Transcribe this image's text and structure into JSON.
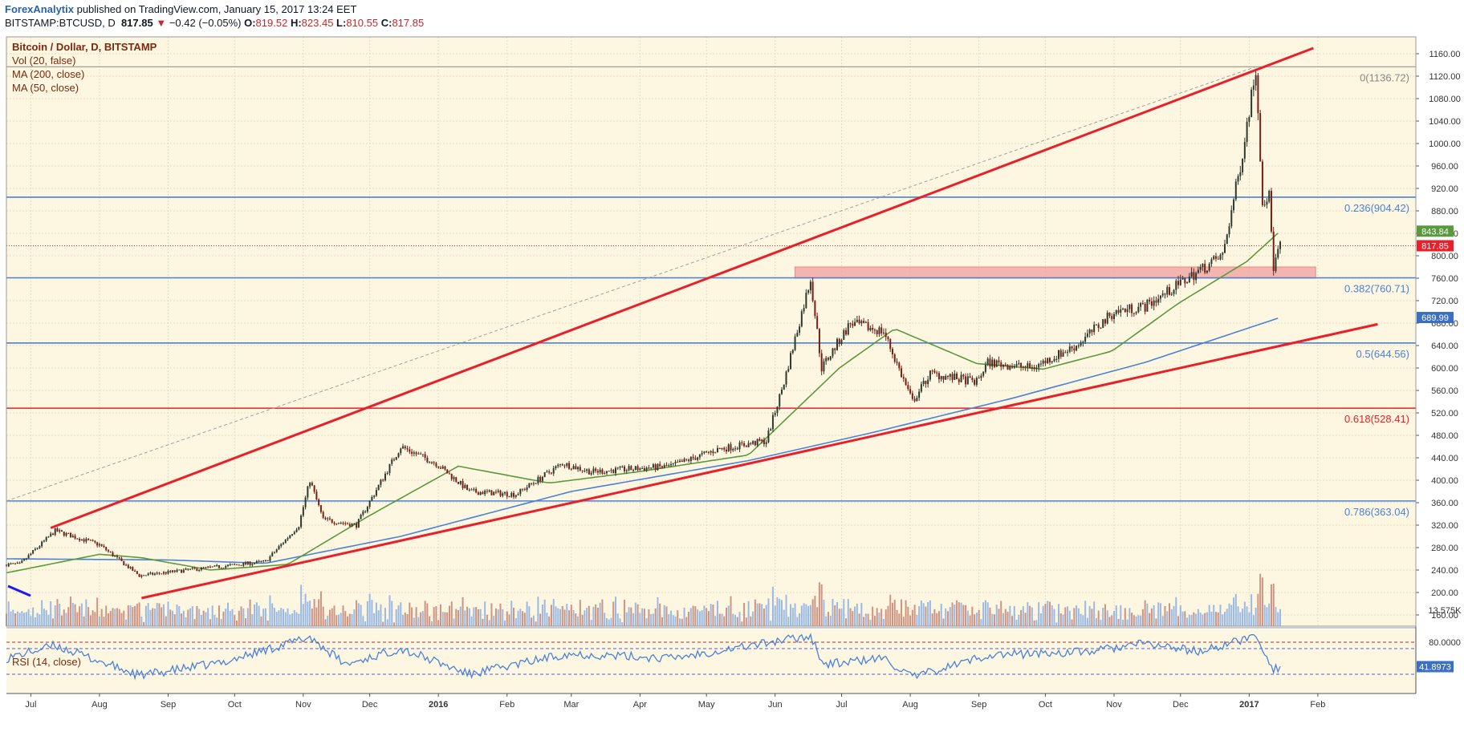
{
  "header": {
    "brand": "ForexAnalytix",
    "published": " published on TradingView.com, January 15, 2017 13:24 EET",
    "symbol": "BITSTAMP:BTCUSD, D",
    "last": "817.85",
    "arrow": "▼",
    "change": "−0.42 (−0.05%)",
    "open_label": "O:",
    "open": "819.52",
    "high_label": "H:",
    "high": "823.45",
    "low_label": "L:",
    "low": "810.55",
    "close_label": "C:",
    "close": "817.85"
  },
  "legend": {
    "title": "Bitcoin / Dollar, D, BITSTAMP",
    "vol": "Vol (20, false)",
    "ma200": "MA (200, close)",
    "ma50": "MA (50, close)",
    "rsi": "RSI (14, close)"
  },
  "colors": {
    "background": "#fdf6e1",
    "up": "#2d3a2d",
    "down": "#7a1e14",
    "ma50": "#5a9a3c",
    "ma200": "#4a82d8",
    "trend": "#e8202a",
    "fib_blue": "#4a82d8",
    "fib_red": "#e8202a",
    "zone": "#f2a0a0",
    "rsi": "#4a82d8"
  },
  "chart_data": {
    "type": "candlestick",
    "title": "Bitcoin / Dollar, D, BITSTAMP",
    "xlabel": "",
    "ylabel": "",
    "ylim": [
      140,
      1190
    ],
    "x_tick_labels": [
      "Jul",
      "Aug",
      "Sep",
      "Oct",
      "Nov",
      "Dec",
      "2016",
      "Feb",
      "Mar",
      "Apr",
      "May",
      "Jun",
      "Jul",
      "Aug",
      "Sep",
      "Oct",
      "Nov",
      "Dec",
      "2017",
      "Feb"
    ],
    "y_ticks": [
      160,
      200,
      240,
      280,
      320,
      360,
      400,
      440,
      480,
      520,
      560,
      600,
      640,
      680,
      720,
      760,
      800,
      840,
      880,
      920,
      960,
      1000,
      1040,
      1080,
      1120,
      1160
    ],
    "price_anchors": [
      {
        "date": "2015-06-26",
        "price": 250
      },
      {
        "date": "2015-07-12",
        "price": 310
      },
      {
        "date": "2015-08-01",
        "price": 285
      },
      {
        "date": "2015-08-19",
        "price": 230
      },
      {
        "date": "2015-09-10",
        "price": 240
      },
      {
        "date": "2015-10-15",
        "price": 255
      },
      {
        "date": "2015-10-30",
        "price": 320
      },
      {
        "date": "2015-11-04",
        "price": 400
      },
      {
        "date": "2015-11-10",
        "price": 330
      },
      {
        "date": "2015-11-25",
        "price": 320
      },
      {
        "date": "2015-12-15",
        "price": 460
      },
      {
        "date": "2015-12-31",
        "price": 430
      },
      {
        "date": "2016-01-15",
        "price": 380
      },
      {
        "date": "2016-02-05",
        "price": 375
      },
      {
        "date": "2016-02-26",
        "price": 430
      },
      {
        "date": "2016-03-10",
        "price": 415
      },
      {
        "date": "2016-04-15",
        "price": 425
      },
      {
        "date": "2016-05-06",
        "price": 455
      },
      {
        "date": "2016-05-28",
        "price": 470
      },
      {
        "date": "2016-06-05",
        "price": 575
      },
      {
        "date": "2016-06-17",
        "price": 760
      },
      {
        "date": "2016-06-22",
        "price": 600
      },
      {
        "date": "2016-07-05",
        "price": 680
      },
      {
        "date": "2016-07-20",
        "price": 665
      },
      {
        "date": "2016-08-02",
        "price": 540
      },
      {
        "date": "2016-08-10",
        "price": 590
      },
      {
        "date": "2016-08-31",
        "price": 575
      },
      {
        "date": "2016-09-05",
        "price": 610
      },
      {
        "date": "2016-09-25",
        "price": 600
      },
      {
        "date": "2016-10-15",
        "price": 640
      },
      {
        "date": "2016-11-01",
        "price": 700
      },
      {
        "date": "2016-11-15",
        "price": 710
      },
      {
        "date": "2016-11-25",
        "price": 735
      },
      {
        "date": "2016-12-10",
        "price": 775
      },
      {
        "date": "2016-12-20",
        "price": 800
      },
      {
        "date": "2016-12-28",
        "price": 960
      },
      {
        "date": "2017-01-04",
        "price": 1136
      },
      {
        "date": "2017-01-07",
        "price": 900
      },
      {
        "date": "2017-01-10",
        "price": 905
      },
      {
        "date": "2017-01-12",
        "price": 780
      },
      {
        "date": "2017-01-15",
        "price": 818
      }
    ],
    "ma50_anchors": [
      {
        "date": "2015-06-20",
        "value": 235
      },
      {
        "date": "2015-08-01",
        "value": 268
      },
      {
        "date": "2015-08-20",
        "value": 262
      },
      {
        "date": "2015-09-20",
        "value": 240
      },
      {
        "date": "2015-10-25",
        "value": 250
      },
      {
        "date": "2015-11-30",
        "value": 335
      },
      {
        "date": "2016-01-10",
        "value": 425
      },
      {
        "date": "2016-02-20",
        "value": 395
      },
      {
        "date": "2016-03-31",
        "value": 415
      },
      {
        "date": "2016-05-20",
        "value": 445
      },
      {
        "date": "2016-06-30",
        "value": 600
      },
      {
        "date": "2016-07-25",
        "value": 670
      },
      {
        "date": "2016-08-31",
        "value": 608
      },
      {
        "date": "2016-09-30",
        "value": 598
      },
      {
        "date": "2016-10-31",
        "value": 630
      },
      {
        "date": "2016-11-30",
        "value": 715
      },
      {
        "date": "2016-12-31",
        "value": 790
      },
      {
        "date": "2017-01-15",
        "value": 843.84
      }
    ],
    "ma200_anchors": [
      {
        "date": "2015-06-20",
        "value": 260
      },
      {
        "date": "2015-09-01",
        "value": 258
      },
      {
        "date": "2015-10-15",
        "value": 252
      },
      {
        "date": "2015-12-15",
        "value": 300
      },
      {
        "date": "2016-03-01",
        "value": 380
      },
      {
        "date": "2016-05-20",
        "value": 435
      },
      {
        "date": "2016-07-15",
        "value": 485
      },
      {
        "date": "2016-09-15",
        "value": 545
      },
      {
        "date": "2016-11-15",
        "value": 610
      },
      {
        "date": "2017-01-15",
        "value": 689.99
      }
    ],
    "rsi_anchors": [
      {
        "date": "2015-06-20",
        "value": 55
      },
      {
        "date": "2015-07-12",
        "value": 75
      },
      {
        "date": "2015-08-19",
        "value": 28
      },
      {
        "date": "2015-09-25",
        "value": 48
      },
      {
        "date": "2015-11-04",
        "value": 88
      },
      {
        "date": "2015-11-20",
        "value": 45
      },
      {
        "date": "2015-12-15",
        "value": 70
      },
      {
        "date": "2016-01-15",
        "value": 30
      },
      {
        "date": "2016-02-28",
        "value": 62
      },
      {
        "date": "2016-04-15",
        "value": 55
      },
      {
        "date": "2016-06-17",
        "value": 90
      },
      {
        "date": "2016-06-23",
        "value": 45
      },
      {
        "date": "2016-07-20",
        "value": 55
      },
      {
        "date": "2016-08-02",
        "value": 25
      },
      {
        "date": "2016-09-05",
        "value": 60
      },
      {
        "date": "2016-10-20",
        "value": 65
      },
      {
        "date": "2016-11-15",
        "value": 78
      },
      {
        "date": "2016-12-10",
        "value": 65
      },
      {
        "date": "2017-01-04",
        "value": 90
      },
      {
        "date": "2017-01-12",
        "value": 38
      },
      {
        "date": "2017-01-15",
        "value": 41.8973
      }
    ],
    "rsi_levels": [
      80,
      70,
      30
    ],
    "fibonacci": [
      {
        "label": "0(1136.72)",
        "value": 1136.72,
        "color": "#888888"
      },
      {
        "label": "0.236(904.42)",
        "value": 904.42,
        "color": "#4a82d8"
      },
      {
        "label": "0.382(760.71)",
        "value": 760.71,
        "color": "#4a82d8"
      },
      {
        "label": "0.5(644.56)",
        "value": 644.56,
        "color": "#4a82d8"
      },
      {
        "label": "0.618(528.41)",
        "value": 528.41,
        "color": "#e8202a"
      },
      {
        "label": "0.786(363.04)",
        "value": 363.04,
        "color": "#4a82d8"
      }
    ],
    "zone": {
      "from": 760,
      "to": 780,
      "start": "2016-06-10",
      "end": "2017-01-31"
    },
    "trendlines": [
      {
        "name": "upper",
        "from": {
          "date": "2015-07-10",
          "price": 315
        },
        "to": {
          "date": "2017-01-30",
          "price": 1170
        }
      },
      {
        "name": "lower",
        "from": {
          "date": "2015-08-20",
          "price": 190
        },
        "to": {
          "date": "2017-02-28",
          "price": 678
        }
      }
    ],
    "price_tags": [
      {
        "label": "843.84",
        "value": 843.84,
        "color": "#5a9a3c"
      },
      {
        "label": "817.85",
        "value": 817.85,
        "color": "#e8202a"
      },
      {
        "label": "689.99",
        "value": 689.99,
        "color": "#3a6fc4"
      }
    ],
    "volume_label": "13.575K",
    "rsi_ticks": [
      "80.0000"
    ],
    "rsi_last": "41.8973"
  }
}
